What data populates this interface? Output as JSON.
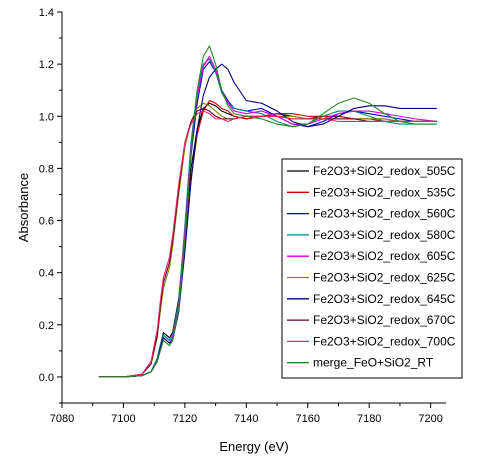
{
  "chart_data": {
    "type": "line",
    "title": "",
    "xlabel": "Energy (eV)",
    "ylabel": "Absorbance",
    "xlim": [
      7080,
      7205
    ],
    "ylim": [
      -0.1,
      1.4
    ],
    "xticks": [
      7080,
      7100,
      7120,
      7140,
      7160,
      7180,
      7200
    ],
    "yticks": [
      0.0,
      0.2,
      0.4,
      0.6,
      0.8,
      1.0,
      1.2,
      1.4
    ],
    "xtick_labels": [
      "7080",
      "7100",
      "7120",
      "7140",
      "7160",
      "7180",
      "7200"
    ],
    "ytick_labels": [
      "0.0",
      "0.2",
      "0.4",
      "0.6",
      "0.8",
      "1.0",
      "1.2",
      "1.4"
    ],
    "grid": false,
    "legend_position": "right",
    "series": [
      {
        "name": "Fe2O3+SiO2_redox_505C",
        "color": "#000000",
        "x": [
          7092,
          7100,
          7106,
          7109,
          7111,
          7112,
          7113,
          7114,
          7115,
          7116,
          7118,
          7120,
          7122,
          7124,
          7126,
          7128,
          7130,
          7132,
          7134,
          7136,
          7140,
          7145,
          7150,
          7155,
          7160,
          7165,
          7170,
          7175,
          7180,
          7185,
          7190,
          7195,
          7202
        ],
        "y": [
          0.0,
          0.0,
          0.005,
          0.02,
          0.07,
          0.12,
          0.17,
          0.16,
          0.15,
          0.17,
          0.3,
          0.55,
          0.8,
          0.95,
          1.03,
          1.05,
          1.04,
          1.02,
          1.01,
          1.0,
          0.99,
          1.0,
          1.01,
          1.0,
          0.99,
          1.0,
          1.0,
          0.99,
          0.99,
          0.99,
          0.98,
          0.98,
          0.98
        ]
      },
      {
        "name": "Fe2O3+SiO2_redox_535C",
        "color": "#cc0000",
        "x": [
          7092,
          7100,
          7106,
          7109,
          7111,
          7112,
          7113,
          7114,
          7115,
          7116,
          7118,
          7120,
          7122,
          7124,
          7126,
          7128,
          7130,
          7132,
          7134,
          7136,
          7140,
          7145,
          7150,
          7155,
          7160,
          7165,
          7170,
          7175,
          7180,
          7185,
          7190,
          7195,
          7202
        ],
        "y": [
          0.0,
          0.0,
          0.005,
          0.02,
          0.06,
          0.11,
          0.15,
          0.14,
          0.13,
          0.14,
          0.26,
          0.5,
          0.76,
          0.93,
          1.02,
          1.06,
          1.05,
          1.03,
          1.02,
          1.0,
          0.99,
          1.0,
          1.01,
          1.01,
          1.0,
          1.0,
          1.0,
          0.99,
          0.99,
          0.98,
          0.98,
          0.98,
          0.98
        ]
      },
      {
        "name": "Fe2O3+SiO2_redox_560C",
        "color": "#0000cc",
        "x": [
          7092,
          7100,
          7106,
          7109,
          7111,
          7112,
          7113,
          7114,
          7115,
          7116,
          7118,
          7120,
          7122,
          7124,
          7126,
          7128,
          7130,
          7132,
          7134,
          7136,
          7140,
          7145,
          7150,
          7155,
          7160,
          7165,
          7170,
          7175,
          7180,
          7185,
          7190,
          7195,
          7202
        ],
        "y": [
          0.0,
          0.0,
          0.005,
          0.02,
          0.07,
          0.12,
          0.16,
          0.15,
          0.14,
          0.16,
          0.28,
          0.55,
          0.85,
          1.05,
          1.18,
          1.21,
          1.17,
          1.1,
          1.06,
          1.03,
          1.02,
          1.03,
          1.0,
          0.97,
          0.96,
          0.98,
          1.01,
          1.02,
          1.01,
          1.0,
          0.99,
          0.98,
          0.98
        ]
      },
      {
        "name": "Fe2O3+SiO2_redox_580C",
        "color": "#008888",
        "x": [
          7092,
          7100,
          7106,
          7109,
          7111,
          7112,
          7113,
          7114,
          7115,
          7116,
          7118,
          7120,
          7122,
          7124,
          7126,
          7128,
          7130,
          7132,
          7134,
          7136,
          7140,
          7145,
          7150,
          7155,
          7160,
          7165,
          7170,
          7175,
          7180,
          7185,
          7190,
          7195,
          7202
        ],
        "y": [
          0.0,
          0.0,
          0.005,
          0.02,
          0.07,
          0.12,
          0.16,
          0.15,
          0.14,
          0.16,
          0.29,
          0.58,
          0.9,
          1.1,
          1.2,
          1.22,
          1.17,
          1.09,
          1.05,
          1.03,
          1.02,
          1.01,
          0.98,
          0.96,
          0.97,
          1.0,
          1.02,
          1.02,
          1.0,
          0.98,
          0.97,
          0.97,
          0.97
        ]
      },
      {
        "name": "Fe2O3+SiO2_redox_605C",
        "color": "#dd00dd",
        "x": [
          7092,
          7100,
          7106,
          7109,
          7111,
          7112,
          7113,
          7114,
          7115,
          7116,
          7118,
          7120,
          7122,
          7124,
          7126,
          7128,
          7130,
          7132,
          7134,
          7136,
          7140,
          7145,
          7150,
          7155,
          7160,
          7165,
          7170,
          7175,
          7180,
          7185,
          7190,
          7195,
          7202
        ],
        "y": [
          0.0,
          0.0,
          0.005,
          0.02,
          0.06,
          0.11,
          0.15,
          0.14,
          0.13,
          0.15,
          0.27,
          0.55,
          0.88,
          1.08,
          1.19,
          1.23,
          1.18,
          1.1,
          1.05,
          1.02,
          1.01,
          1.02,
          1.0,
          0.97,
          0.97,
          0.99,
          1.01,
          1.02,
          1.02,
          1.01,
          1.0,
          0.99,
          0.98
        ]
      },
      {
        "name": "Fe2O3+SiO2_redox_625C",
        "color": "#888800",
        "x": [
          7092,
          7100,
          7106,
          7109,
          7111,
          7112,
          7113,
          7114,
          7115,
          7116,
          7118,
          7120,
          7122,
          7124,
          7126,
          7128,
          7130,
          7132,
          7134,
          7136,
          7140,
          7145,
          7150,
          7155,
          7160,
          7165,
          7170,
          7175,
          7180,
          7185,
          7190,
          7195,
          7202
        ],
        "y": [
          0.0,
          0.0,
          0.01,
          0.05,
          0.15,
          0.25,
          0.34,
          0.38,
          0.42,
          0.5,
          0.7,
          0.88,
          0.98,
          1.03,
          1.05,
          1.04,
          1.02,
          1.0,
          0.99,
          0.99,
          1.0,
          1.0,
          1.0,
          1.0,
          0.99,
          0.99,
          0.99,
          0.99,
          0.99,
          0.99,
          0.98,
          0.98,
          0.98
        ]
      },
      {
        "name": "Fe2O3+SiO2_redox_645C",
        "color": "#000080",
        "x": [
          7092,
          7100,
          7106,
          7109,
          7111,
          7112,
          7113,
          7114,
          7115,
          7116,
          7118,
          7120,
          7122,
          7124,
          7126,
          7128,
          7130,
          7132,
          7134,
          7136,
          7140,
          7145,
          7150,
          7155,
          7160,
          7165,
          7170,
          7175,
          7180,
          7185,
          7190,
          7195,
          7202
        ],
        "y": [
          0.0,
          0.0,
          0.005,
          0.02,
          0.06,
          0.11,
          0.15,
          0.14,
          0.13,
          0.14,
          0.25,
          0.48,
          0.75,
          0.95,
          1.08,
          1.15,
          1.18,
          1.2,
          1.18,
          1.13,
          1.06,
          1.05,
          1.02,
          0.98,
          0.96,
          0.97,
          1.0,
          1.03,
          1.04,
          1.04,
          1.03,
          1.03,
          1.03
        ]
      },
      {
        "name": "Fe2O3+SiO2_redox_670C",
        "color": "#660033",
        "x": [
          7092,
          7100,
          7106,
          7109,
          7111,
          7112,
          7113,
          7114,
          7115,
          7116,
          7118,
          7120,
          7122,
          7124,
          7126,
          7128,
          7130,
          7132,
          7134,
          7136,
          7140,
          7145,
          7150,
          7155,
          7160,
          7165,
          7170,
          7175,
          7180,
          7185,
          7190,
          7195,
          7202
        ],
        "y": [
          0.0,
          0.0,
          0.01,
          0.05,
          0.16,
          0.27,
          0.36,
          0.4,
          0.44,
          0.52,
          0.72,
          0.9,
          0.98,
          1.02,
          1.03,
          1.02,
          1.0,
          0.99,
          0.99,
          0.99,
          1.0,
          1.0,
          1.0,
          0.99,
          0.99,
          0.99,
          0.99,
          0.99,
          0.98,
          0.98,
          0.98,
          0.98,
          0.98
        ]
      },
      {
        "name": "Fe2O3+SiO2_redox_700C",
        "color": "#ee2266",
        "x": [
          7092,
          7100,
          7106,
          7109,
          7111,
          7112,
          7113,
          7114,
          7115,
          7116,
          7118,
          7120,
          7122,
          7124,
          7126,
          7128,
          7130,
          7132,
          7134,
          7136,
          7140,
          7145,
          7150,
          7155,
          7160,
          7165,
          7170,
          7175,
          7180,
          7185,
          7190,
          7195,
          7202
        ],
        "y": [
          0.0,
          0.0,
          0.01,
          0.06,
          0.18,
          0.29,
          0.38,
          0.42,
          0.46,
          0.54,
          0.74,
          0.9,
          0.97,
          1.01,
          1.02,
          1.01,
          0.99,
          0.99,
          0.98,
          0.99,
          1.0,
          1.0,
          1.0,
          0.99,
          0.99,
          0.99,
          0.98,
          0.98,
          0.98,
          0.98,
          0.98,
          0.98,
          0.98
        ]
      },
      {
        "name": "merge_FeO+SiO2_RT",
        "color": "#228822",
        "x": [
          7092,
          7100,
          7106,
          7109,
          7111,
          7112,
          7113,
          7114,
          7115,
          7116,
          7118,
          7120,
          7122,
          7124,
          7126,
          7128,
          7130,
          7132,
          7134,
          7136,
          7140,
          7145,
          7150,
          7155,
          7160,
          7165,
          7170,
          7175,
          7180,
          7185,
          7190,
          7195,
          7202
        ],
        "y": [
          0.0,
          0.0,
          0.005,
          0.02,
          0.06,
          0.1,
          0.14,
          0.13,
          0.12,
          0.14,
          0.26,
          0.52,
          0.86,
          1.1,
          1.23,
          1.27,
          1.2,
          1.1,
          1.04,
          1.01,
          1.0,
          0.99,
          0.97,
          0.96,
          0.97,
          1.01,
          1.05,
          1.07,
          1.05,
          1.01,
          0.98,
          0.97,
          0.97
        ]
      }
    ]
  }
}
